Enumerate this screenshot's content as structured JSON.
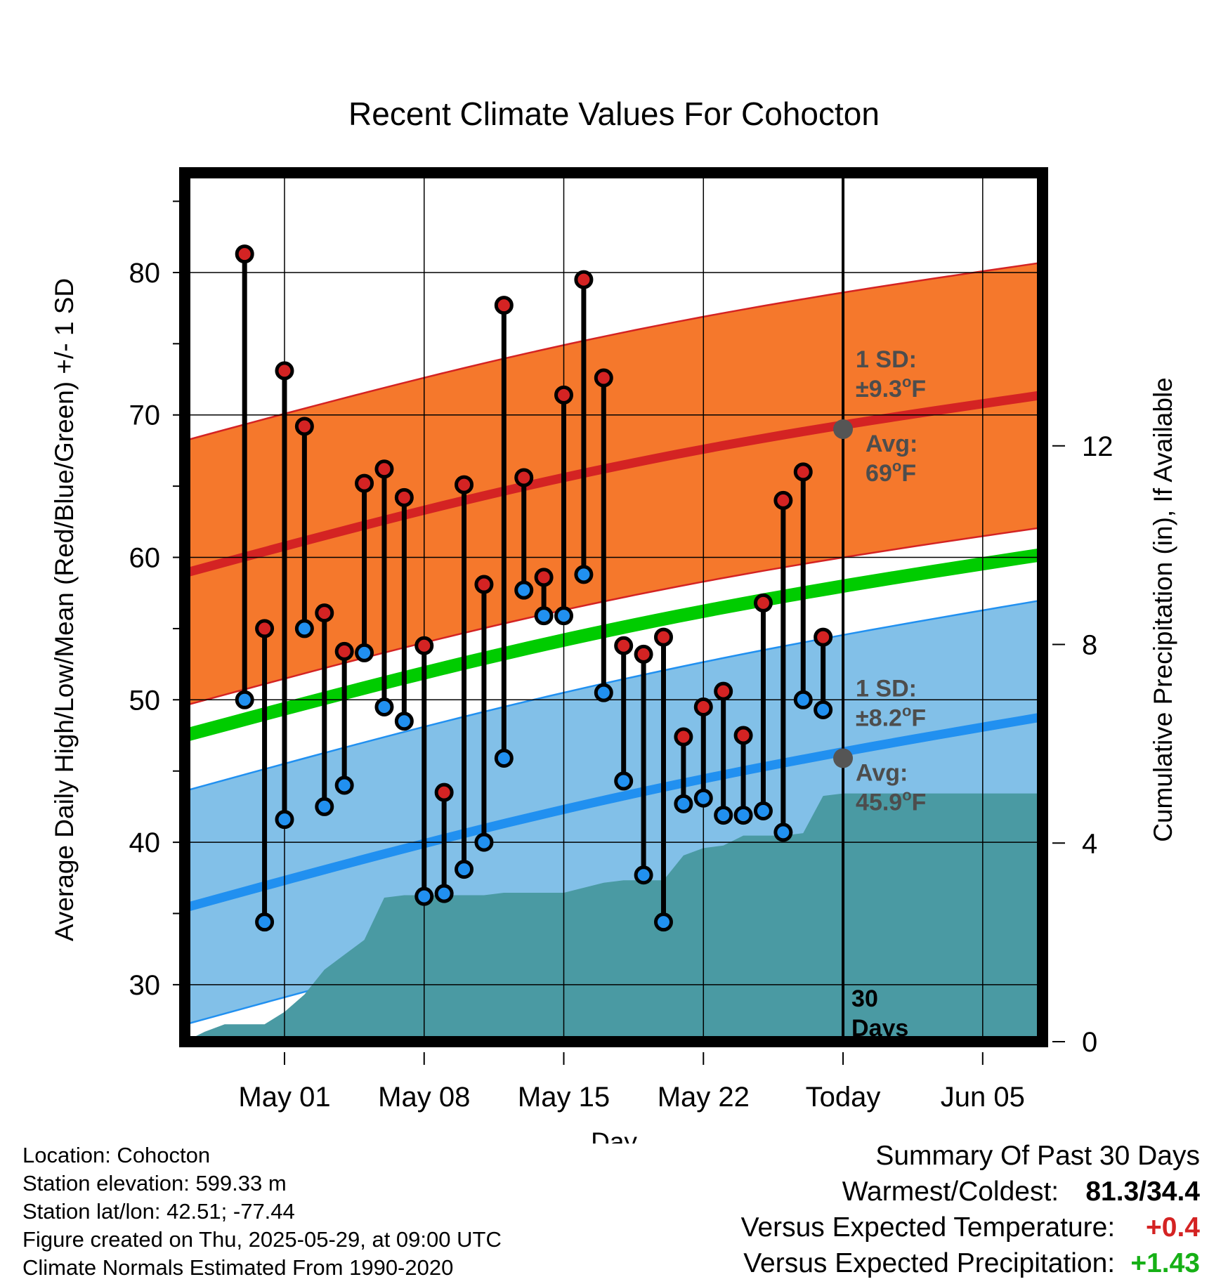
{
  "chart_data": {
    "type": "line",
    "title": "Recent Climate Values For Cohocton",
    "xlabel": "Day",
    "ylabel": "Average Daily High/Low/Mean (Red/Blue/Green) +/- 1 SD",
    "y2label": "Cumulative Precipitation (in), If Available",
    "ylim": [
      26,
      87
    ],
    "y2lim": [
      0,
      17.5
    ],
    "yticks": [
      "30",
      "40",
      "50",
      "60",
      "70",
      "80"
    ],
    "y2ticks": [
      "0",
      "4",
      "8",
      "12"
    ],
    "xlim": [
      "2025-04-26",
      "2025-06-08"
    ],
    "xticks": [
      {
        "date": "2025-05-01",
        "label": "May 01"
      },
      {
        "date": "2025-05-08",
        "label": "May 08"
      },
      {
        "date": "2025-05-15",
        "label": "May 15"
      },
      {
        "date": "2025-05-22",
        "label": "May 22"
      },
      {
        "date": "2025-05-29",
        "label": "Today"
      },
      {
        "date": "2025-06-05",
        "label": "Jun 05"
      }
    ],
    "grid": true,
    "today": "2025-05-29",
    "days": [
      "2025-04-29",
      "2025-04-30",
      "2025-05-01",
      "2025-05-02",
      "2025-05-03",
      "2025-05-04",
      "2025-05-05",
      "2025-05-06",
      "2025-05-07",
      "2025-05-08",
      "2025-05-09",
      "2025-05-10",
      "2025-05-11",
      "2025-05-12",
      "2025-05-13",
      "2025-05-14",
      "2025-05-15",
      "2025-05-16",
      "2025-05-17",
      "2025-05-18",
      "2025-05-19",
      "2025-05-20",
      "2025-05-21",
      "2025-05-22",
      "2025-05-23",
      "2025-05-24",
      "2025-05-25",
      "2025-05-26",
      "2025-05-27",
      "2025-05-28"
    ],
    "series": [
      {
        "name": "High",
        "color": "#d42323",
        "values": [
          81.3,
          55.0,
          73.1,
          69.2,
          56.1,
          53.4,
          65.2,
          66.2,
          64.2,
          53.8,
          43.5,
          65.1,
          58.1,
          77.7,
          65.6,
          58.6,
          71.4,
          79.5,
          72.6,
          53.8,
          53.2,
          54.4,
          47.4,
          49.5,
          50.6,
          47.5,
          56.8,
          64.0,
          66.0,
          54.4
        ]
      },
      {
        "name": "Low",
        "color": "#2190f0",
        "values": [
          50.0,
          34.4,
          41.6,
          55.0,
          42.5,
          44.0,
          53.3,
          49.5,
          48.5,
          36.2,
          36.4,
          38.1,
          40.0,
          45.9,
          57.7,
          55.9,
          55.9,
          58.8,
          50.5,
          44.3,
          37.7,
          34.4,
          42.7,
          43.1,
          41.9,
          41.9,
          42.2,
          40.7,
          50.0,
          49.3
        ]
      }
    ],
    "normals": {
      "high_avg": {
        "start": 58.9,
        "end": 71.4
      },
      "high_sd": 9.3,
      "low_avg": {
        "start": 35.4,
        "end": 48.8
      },
      "low_sd": 8.2,
      "mean_avg": {
        "start": 47.5,
        "end": 60.2
      },
      "colors": {
        "high_band": "#f5782c",
        "high_line": "#d42323",
        "low_band": "#82c0e8",
        "low_line": "#2190f0",
        "mean_line": "#00cc00",
        "precip": "#4a9aa3"
      }
    },
    "precip": {
      "name": "Cumulative Precipitation",
      "dates": [
        "2025-04-26",
        "2025-04-27",
        "2025-04-28",
        "2025-04-29",
        "2025-04-30",
        "2025-05-01",
        "2025-05-02",
        "2025-05-03",
        "2025-05-04",
        "2025-05-05",
        "2025-05-06",
        "2025-05-07",
        "2025-05-08",
        "2025-05-09",
        "2025-05-10",
        "2025-05-11",
        "2025-05-12",
        "2025-05-13",
        "2025-05-14",
        "2025-05-15",
        "2025-05-16",
        "2025-05-17",
        "2025-05-18",
        "2025-05-19",
        "2025-05-20",
        "2025-05-21",
        "2025-05-22",
        "2025-05-23",
        "2025-05-24",
        "2025-05-25",
        "2025-05-26",
        "2025-05-27",
        "2025-05-28",
        "2025-05-29",
        "2025-06-08"
      ],
      "values": [
        0,
        0.2,
        0.35,
        0.35,
        0.35,
        0.6,
        0.95,
        1.45,
        1.75,
        2.05,
        2.9,
        2.95,
        2.95,
        2.95,
        2.95,
        2.95,
        3.0,
        3.0,
        3.0,
        3.0,
        3.1,
        3.2,
        3.25,
        3.25,
        3.25,
        3.75,
        3.9,
        3.95,
        4.15,
        4.15,
        4.15,
        4.2,
        4.95,
        5.0,
        5.0
      ]
    },
    "annotations": {
      "high_sd_label": "1 SD:",
      "high_sd_value": "±9.3",
      "high_avg_label": "Avg:",
      "high_avg_value": "69",
      "low_sd_label": "1 SD:",
      "low_sd_value": "±8.2",
      "low_avg_label": "Avg:",
      "low_avg_value": "45.9",
      "degree": "o",
      "unit": "F",
      "high_avg_at_today": 69.0,
      "low_avg_at_today": 45.9,
      "days_count": "30",
      "days_label": "Days"
    }
  },
  "info": {
    "location": "Location: Cohocton",
    "elevation": "Station elevation: 599.33 m",
    "latlon": "Station lat/lon: 42.51; -77.44",
    "created": "Figure created on Thu, 2025-05-29, at 09:00 UTC",
    "normals": "Climate Normals Estimated From 1990-2020"
  },
  "summary": {
    "title": "Summary Of Past 30 Days",
    "warm_cold_label": "Warmest/Coldest:",
    "warm_cold_value": "81.3/34.4",
    "temp_label": "Versus Expected Temperature:",
    "temp_value": "+0.4",
    "precip_label": "Versus Expected Precipitation:",
    "precip_value": "+1.43"
  }
}
